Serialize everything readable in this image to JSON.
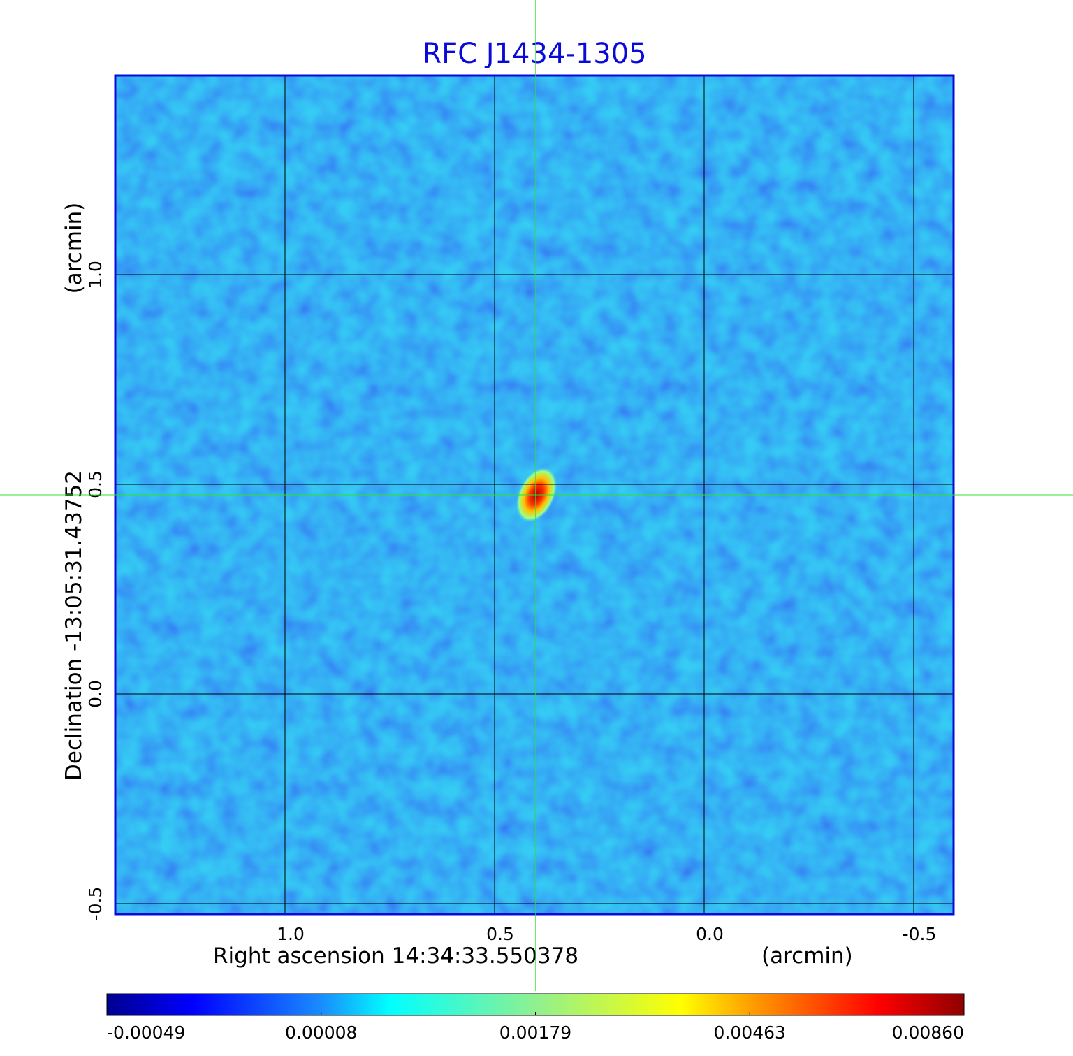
{
  "chart_data": {
    "type": "image",
    "title": "RFC J1434-1305",
    "xlabel": "Right ascension  14:34:33.550378",
    "xunit": "(arcmin)",
    "ylabel": "Declination  -13:05:31.43752",
    "yunit": "(arcmin)",
    "xlim": [
      1.405,
      -0.595
    ],
    "ylim": [
      -0.525,
      1.475
    ],
    "xticks": [
      {
        "value": 1.0,
        "label": "1.0"
      },
      0.5,
      {
        "value": 0.0,
        "label": "0.0"
      },
      -0.5
    ],
    "yticks": [
      {
        "value": 1.0,
        "label": "1.0"
      },
      0.5,
      {
        "value": 0.0,
        "label": "0.0"
      },
      -0.5
    ],
    "grid": true,
    "crosshair": [
      0.402,
      0.475
    ],
    "colorbar": {
      "ticks": [
        -0.00049,
        8e-05,
        0.00179,
        0.00463,
        {
          "value": 0.0086,
          "label": "0.00860"
        }
      ]
    }
  }
}
